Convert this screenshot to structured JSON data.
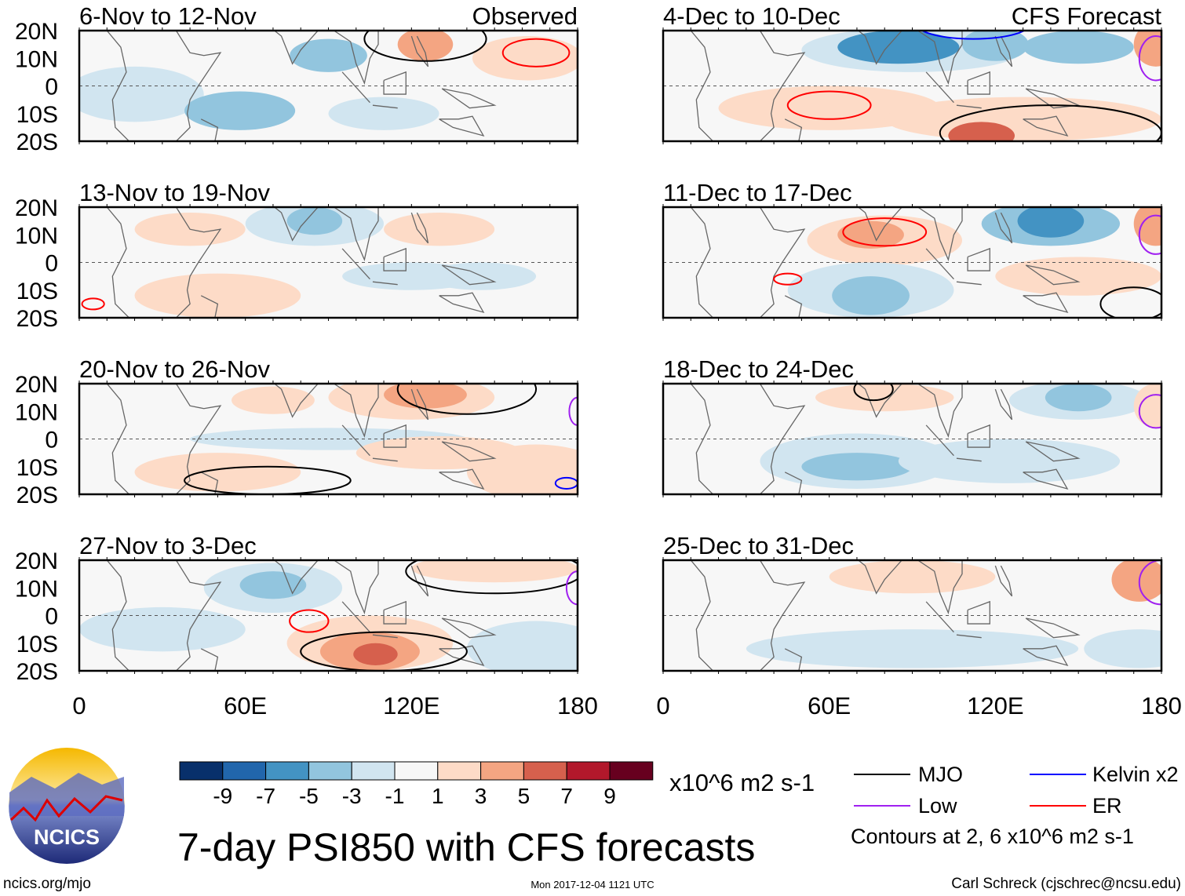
{
  "chart_data": {
    "type": "heatmap",
    "title": "7-day PSI850 with CFS forecasts",
    "units": "x10^6 m2 s-1",
    "lon_range": [
      0,
      180
    ],
    "lat_range": [
      -20,
      20
    ],
    "lat_ticks": [
      "20N",
      "10N",
      "0",
      "10S",
      "20S"
    ],
    "lon_ticks": [
      "0",
      "60E",
      "120E",
      "180"
    ],
    "colorbar": {
      "labels": [
        "-9",
        "-7",
        "-5",
        "-3",
        "-1",
        "1",
        "3",
        "5",
        "7",
        "9"
      ],
      "colors": [
        "#08306b",
        "#2166ac",
        "#4393c3",
        "#92c5de",
        "#d1e5f0",
        "#f7f7f7",
        "#fddbc7",
        "#f4a582",
        "#d6604d",
        "#b2182b",
        "#67001f"
      ]
    },
    "legend": [
      {
        "label": "MJO",
        "color": "#000000"
      },
      {
        "label": "Kelvin x2",
        "color": "#0000ff"
      },
      {
        "label": "Low",
        "color": "#a020f0"
      },
      {
        "label": "ER",
        "color": "#ff0000"
      }
    ],
    "contour_note": "Contours at 2, 6 x10^6 m2 s-1",
    "panels": [
      {
        "title": "6-Nov to 12-Nov",
        "tag": "Observed",
        "blobs": [
          [
            20,
            -3,
            25,
            10,
            4
          ],
          [
            58,
            -9,
            20,
            7,
            3
          ],
          [
            90,
            11,
            14,
            6,
            3
          ],
          [
            125,
            15,
            10,
            6,
            7
          ],
          [
            162,
            10,
            20,
            8,
            6
          ],
          [
            110,
            -10,
            20,
            6,
            4
          ]
        ],
        "contours": [
          [
            165,
            12,
            12,
            5,
            "ER"
          ],
          [
            125,
            17,
            22,
            8,
            "MJO"
          ]
        ]
      },
      {
        "title": "4-Dec to 10-Dec",
        "tag": "CFS Forecast",
        "blobs": [
          [
            90,
            13,
            40,
            8,
            4
          ],
          [
            85,
            14,
            22,
            6,
            2
          ],
          [
            120,
            15,
            12,
            6,
            3
          ],
          [
            150,
            14,
            20,
            6,
            3
          ],
          [
            60,
            -8,
            40,
            8,
            6
          ],
          [
            130,
            -12,
            50,
            8,
            6
          ],
          [
            115,
            -18,
            12,
            5,
            8
          ],
          [
            178,
            15,
            8,
            8,
            7
          ]
        ],
        "contours": [
          [
            60,
            -7,
            15,
            5,
            "ER"
          ],
          [
            140,
            -17,
            40,
            10,
            "MJO"
          ],
          [
            178,
            10,
            6,
            8,
            "Low"
          ],
          [
            112,
            22,
            20,
            5,
            "Kelvin"
          ]
        ]
      },
      {
        "title": "13-Nov to 19-Nov",
        "tag": "",
        "blobs": [
          [
            85,
            14,
            25,
            8,
            4
          ],
          [
            85,
            15,
            10,
            5,
            3
          ],
          [
            40,
            12,
            20,
            6,
            6
          ],
          [
            130,
            12,
            20,
            6,
            6
          ],
          [
            50,
            -12,
            30,
            8,
            6
          ],
          [
            120,
            -5,
            25,
            5,
            4
          ],
          [
            145,
            -5,
            20,
            5,
            4
          ]
        ],
        "contours": [
          [
            5,
            -15,
            4,
            2,
            "ER"
          ]
        ]
      },
      {
        "title": "11-Dec to 17-Dec",
        "tag": "",
        "blobs": [
          [
            80,
            8,
            28,
            9,
            6
          ],
          [
            75,
            10,
            12,
            5,
            7
          ],
          [
            140,
            14,
            25,
            8,
            3
          ],
          [
            140,
            15,
            12,
            6,
            2
          ],
          [
            75,
            -10,
            30,
            10,
            4
          ],
          [
            75,
            -12,
            14,
            7,
            3
          ],
          [
            150,
            -5,
            30,
            7,
            6
          ],
          [
            178,
            14,
            8,
            8,
            7
          ]
        ],
        "contours": [
          [
            80,
            11,
            15,
            5,
            "ER"
          ],
          [
            45,
            -6,
            5,
            2,
            "ER"
          ],
          [
            170,
            -15,
            12,
            6,
            "MJO"
          ],
          [
            178,
            10,
            6,
            7,
            "Low"
          ]
        ]
      },
      {
        "title": "20-Nov to 26-Nov",
        "tag": "",
        "blobs": [
          [
            120,
            15,
            30,
            8,
            6
          ],
          [
            125,
            16,
            15,
            5,
            7
          ],
          [
            90,
            0,
            50,
            4,
            4
          ],
          [
            130,
            -5,
            30,
            6,
            6
          ],
          [
            165,
            -12,
            25,
            10,
            6
          ],
          [
            50,
            -12,
            30,
            7,
            6
          ],
          [
            70,
            14,
            15,
            5,
            6
          ]
        ],
        "contours": [
          [
            68,
            -15,
            30,
            5,
            "MJO"
          ],
          [
            140,
            18,
            25,
            9,
            "MJO"
          ],
          [
            180,
            10,
            3,
            5,
            "Low"
          ],
          [
            176,
            -16,
            4,
            2,
            "Kelvin"
          ]
        ]
      },
      {
        "title": "18-Dec to 24-Dec",
        "tag": "",
        "blobs": [
          [
            70,
            -8,
            35,
            10,
            4
          ],
          [
            70,
            -10,
            20,
            5,
            3
          ],
          [
            125,
            -8,
            40,
            8,
            4
          ],
          [
            150,
            14,
            25,
            7,
            4
          ],
          [
            150,
            15,
            12,
            5,
            3
          ],
          [
            80,
            15,
            25,
            5,
            6
          ],
          [
            178,
            12,
            8,
            8,
            6
          ]
        ],
        "contours": [
          [
            76,
            18,
            7,
            4,
            "MJO"
          ],
          [
            178,
            10,
            6,
            6,
            "Low"
          ]
        ]
      },
      {
        "title": "27-Nov to 3-Dec",
        "tag": "",
        "blobs": [
          [
            70,
            10,
            25,
            9,
            4
          ],
          [
            70,
            11,
            12,
            5,
            3
          ],
          [
            105,
            -10,
            30,
            10,
            6
          ],
          [
            105,
            -13,
            18,
            7,
            7
          ],
          [
            107,
            -14,
            8,
            4,
            8
          ],
          [
            30,
            -5,
            30,
            8,
            4
          ],
          [
            165,
            -12,
            25,
            10,
            4
          ],
          [
            150,
            17,
            30,
            5,
            6
          ]
        ],
        "contours": [
          [
            83,
            -2,
            7,
            4,
            "ER"
          ],
          [
            110,
            -13,
            30,
            7,
            "MJO"
          ],
          [
            150,
            16,
            32,
            8,
            "MJO"
          ],
          [
            180,
            10,
            4,
            6,
            "Low"
          ]
        ]
      },
      {
        "title": "25-Dec to 31-Dec",
        "tag": "",
        "blobs": [
          [
            90,
            -12,
            60,
            7,
            4
          ],
          [
            172,
            -12,
            20,
            7,
            4
          ],
          [
            172,
            13,
            10,
            8,
            7
          ],
          [
            90,
            14,
            30,
            6,
            6
          ]
        ],
        "contours": [
          [
            180,
            12,
            8,
            8,
            "Low"
          ]
        ]
      }
    ]
  },
  "footer": {
    "url": "ncics.org/mjo",
    "timestamp": "Mon 2017-12-04 1121 UTC",
    "credit": "Carl Schreck (cjschrec@ncsu.edu)",
    "logo_text": "NCICS"
  }
}
